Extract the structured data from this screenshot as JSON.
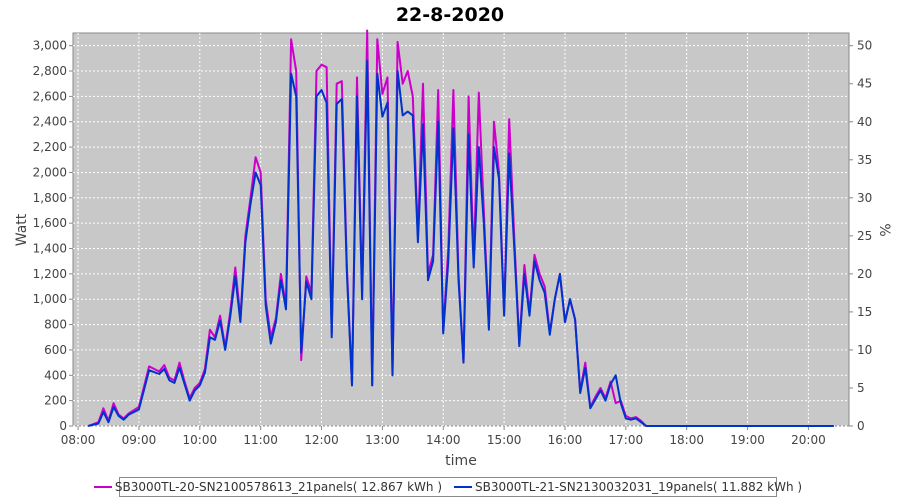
{
  "chart_data": {
    "type": "line",
    "title": "22-8-2020",
    "xlabel": "time",
    "ylabel": "Watt",
    "y2label": "%",
    "xlim": [
      "07:55",
      "20:40"
    ],
    "ylim": [
      0,
      3100
    ],
    "y2lim": [
      0,
      51.67
    ],
    "grid": true,
    "legend": "bottom",
    "background": "#c8c8c8",
    "x_ticks": [
      "08:00",
      "09:00",
      "10:00",
      "11:00",
      "12:00",
      "13:00",
      "14:00",
      "15:00",
      "16:00",
      "17:00",
      "18:00",
      "19:00",
      "20:00"
    ],
    "y_ticks": [
      "0",
      "200",
      "400",
      "600",
      "800",
      "1,000",
      "1,200",
      "1,400",
      "1,600",
      "1,800",
      "2,000",
      "2,200",
      "2,400",
      "2,600",
      "2,800",
      "3,000"
    ],
    "y_tick_values": [
      0,
      200,
      400,
      600,
      800,
      1000,
      1200,
      1400,
      1600,
      1800,
      2000,
      2200,
      2400,
      2600,
      2800,
      3000
    ],
    "y2_ticks": [
      "0",
      "5",
      "10",
      "15",
      "20",
      "25",
      "30",
      "35",
      "40",
      "45",
      "50"
    ],
    "y2_tick_values": [
      0,
      5,
      10,
      15,
      20,
      25,
      30,
      35,
      40,
      45,
      50
    ],
    "x": [
      "08:10",
      "08:20",
      "08:25",
      "08:30",
      "08:35",
      "08:40",
      "08:45",
      "08:50",
      "09:00",
      "09:10",
      "09:20",
      "09:25",
      "09:30",
      "09:35",
      "09:40",
      "09:45",
      "09:50",
      "09:55",
      "10:00",
      "10:05",
      "10:10",
      "10:15",
      "10:20",
      "10:25",
      "10:30",
      "10:35",
      "10:40",
      "10:45",
      "10:50",
      "10:55",
      "11:00",
      "11:05",
      "11:10",
      "11:15",
      "11:20",
      "11:25",
      "11:30",
      "11:35",
      "11:40",
      "11:45",
      "11:50",
      "11:55",
      "12:00",
      "12:05",
      "12:10",
      "12:15",
      "12:20",
      "12:25",
      "12:30",
      "12:35",
      "12:40",
      "12:45",
      "12:50",
      "12:55",
      "13:00",
      "13:05",
      "13:10",
      "13:15",
      "13:20",
      "13:25",
      "13:30",
      "13:35",
      "13:40",
      "13:45",
      "13:50",
      "13:55",
      "14:00",
      "14:05",
      "14:10",
      "14:15",
      "14:20",
      "14:25",
      "14:30",
      "14:35",
      "14:40",
      "14:45",
      "14:50",
      "14:55",
      "15:00",
      "15:05",
      "15:10",
      "15:15",
      "15:20",
      "15:25",
      "15:30",
      "15:35",
      "15:40",
      "15:45",
      "15:50",
      "15:55",
      "16:00",
      "16:05",
      "16:10",
      "16:15",
      "16:20",
      "16:25",
      "16:30",
      "16:35",
      "16:40",
      "16:45",
      "16:50",
      "16:55",
      "17:00",
      "17:05",
      "17:10",
      "17:15",
      "17:20",
      "17:25",
      "17:30",
      "17:35",
      "17:40",
      "17:45",
      "17:50",
      "17:55",
      "18:00",
      "18:10",
      "18:20",
      "18:30",
      "18:40",
      "18:50",
      "18:55",
      "19:00",
      "19:10",
      "19:20",
      "19:30",
      "19:40",
      "19:50",
      "20:00",
      "20:10",
      "20:20",
      "20:25"
    ],
    "series": [
      {
        "name": "SB3000TL-20-SN2100578613_21panels( 12.867 kWh )",
        "color": "#cc00cc",
        "values": [
          0,
          30,
          140,
          40,
          180,
          90,
          60,
          100,
          150,
          470,
          430,
          480,
          380,
          360,
          500,
          350,
          220,
          300,
          340,
          450,
          760,
          700,
          870,
          620,
          900,
          1250,
          850,
          1500,
          1800,
          2120,
          2000,
          1000,
          700,
          850,
          1200,
          950,
          3050,
          2800,
          520,
          1180,
          1050,
          2800,
          2850,
          2830,
          730,
          2700,
          2720,
          1250,
          320,
          2750,
          1050,
          3120,
          320,
          3050,
          2620,
          2750,
          400,
          3030,
          2700,
          2800,
          2600,
          1500,
          2700,
          1200,
          1350,
          2650,
          750,
          1400,
          2650,
          1200,
          500,
          2600,
          1300,
          2630,
          1700,
          780,
          2400,
          2000,
          900,
          2420,
          1480,
          650,
          1270,
          900,
          1350,
          1200,
          1100,
          740,
          1000,
          1200,
          820,
          1000,
          840,
          280,
          500,
          150,
          230,
          300,
          220,
          350,
          180,
          200,
          80,
          60,
          70,
          40,
          0,
          0,
          0,
          0,
          0,
          0,
          0,
          0,
          0,
          0,
          0,
          0,
          0,
          0,
          0,
          0,
          0,
          0,
          0,
          0,
          0,
          0,
          0,
          0,
          0
        ]
      },
      {
        "name": "SB3000TL-21-SN2130032031_19panels( 11.882 kWh )",
        "color": "#0033cc",
        "values": [
          0,
          20,
          110,
          30,
          150,
          80,
          50,
          90,
          130,
          440,
          410,
          450,
          360,
          340,
          460,
          330,
          200,
          280,
          320,
          420,
          700,
          680,
          830,
          600,
          860,
          1180,
          820,
          1450,
          1750,
          2000,
          1900,
          950,
          650,
          820,
          1150,
          920,
          2780,
          2600,
          580,
          1140,
          1000,
          2600,
          2650,
          2550,
          700,
          2540,
          2580,
          1200,
          320,
          2600,
          1000,
          2880,
          320,
          2780,
          2440,
          2550,
          400,
          2800,
          2450,
          2480,
          2450,
          1450,
          2380,
          1150,
          1300,
          2400,
          730,
          1300,
          2350,
          1150,
          500,
          2300,
          1250,
          2200,
          1600,
          760,
          2200,
          1950,
          870,
          2150,
          1400,
          630,
          1200,
          870,
          1300,
          1150,
          1050,
          720,
          1000,
          1200,
          820,
          1000,
          840,
          260,
          460,
          140,
          210,
          280,
          200,
          330,
          400,
          180,
          60,
          50,
          60,
          30,
          0,
          0,
          0,
          0,
          0,
          0,
          0,
          0,
          0,
          0,
          0,
          0,
          0,
          0,
          0,
          0,
          0,
          0,
          0,
          0,
          0,
          0,
          0,
          0,
          0
        ]
      }
    ]
  }
}
